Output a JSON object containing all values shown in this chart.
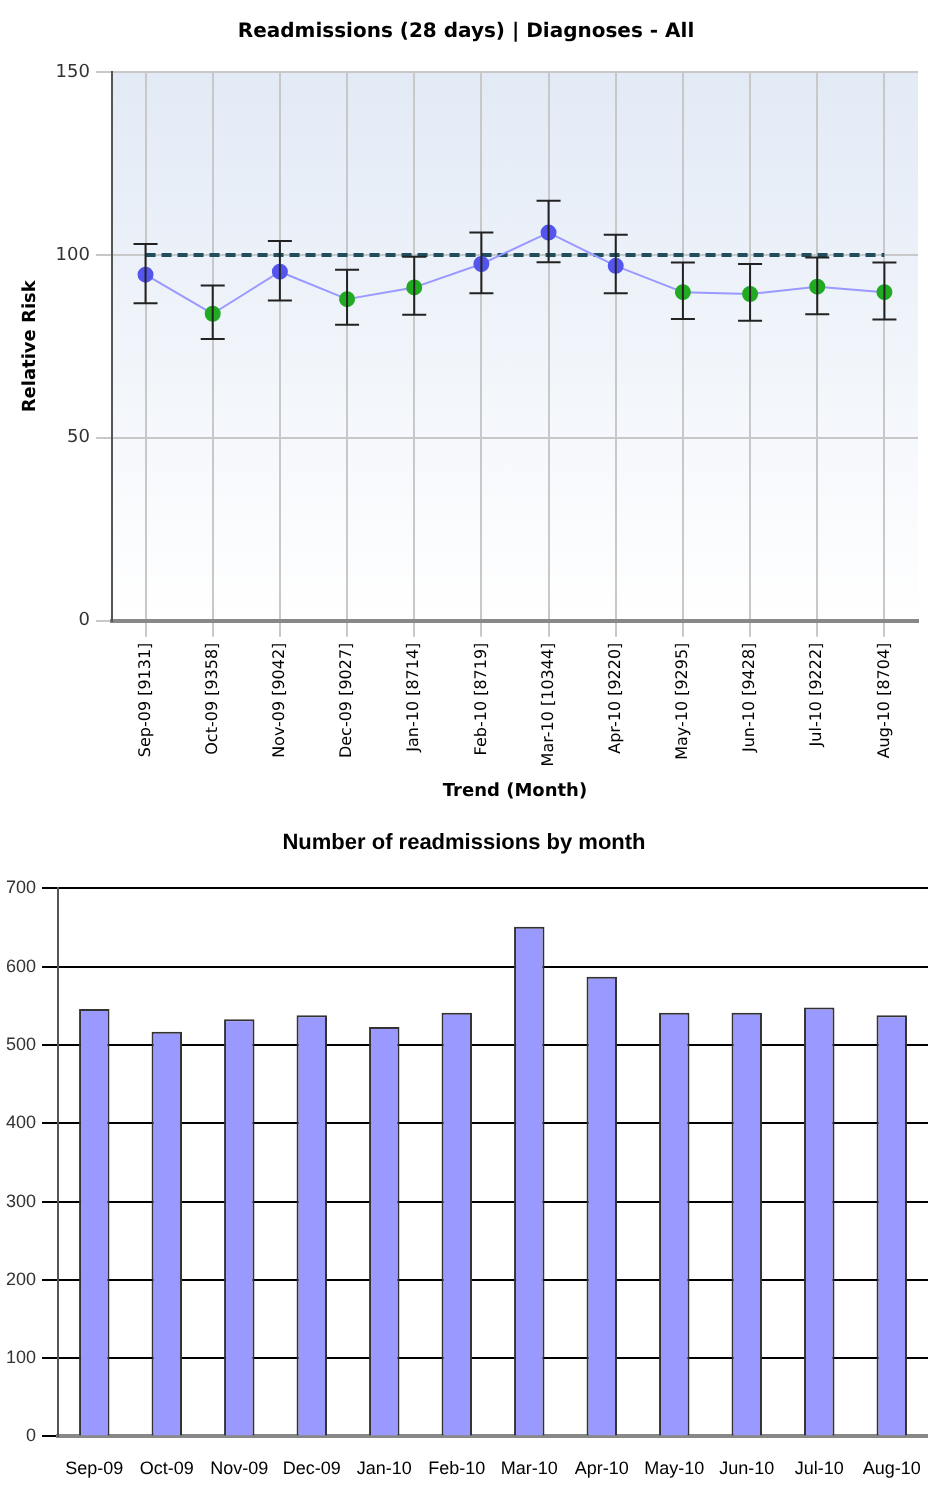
{
  "chart_data": [
    {
      "type": "line",
      "title": "Readmissions (28 days) | Diagnoses - All",
      "xlabel": "Trend (Month)",
      "ylabel": "Relative Risk",
      "categories": [
        "Sep-09 [9131]",
        "Oct-09 [9358]",
        "Nov-09 [9042]",
        "Dec-09 [9027]",
        "Jan-10 [8714]",
        "Feb-10 [8719]",
        "Mar-10 [10344]",
        "Apr-10 [9220]",
        "May-10 [9295]",
        "Jun-10 [9428]",
        "Jul-10 [9222]",
        "Aug-10 [8704]"
      ],
      "series": [
        {
          "color": "#9999ff",
          "colors": [
            "#5555ee",
            "#22aa22",
            "#5555ee",
            "#22aa22",
            "#22aa22",
            "#5555ee",
            "#5555ee",
            "#5555ee",
            "#22aa22",
            "#22aa22",
            "#22aa22",
            "#22aa22"
          ],
          "values": [
            94.6,
            83.9,
            95.4,
            87.9,
            91.1,
            97.5,
            106.1,
            97.0,
            89.8,
            89.3,
            91.3,
            89.8
          ],
          "errors": [
            [
              86.8,
              103.0
            ],
            [
              77.0,
              91.6
            ],
            [
              87.5,
              103.8
            ],
            [
              80.9,
              95.9
            ],
            [
              83.6,
              99.5
            ],
            [
              89.5,
              106.1
            ],
            [
              98.0,
              114.8
            ],
            [
              89.5,
              105.5
            ],
            [
              82.5,
              97.9
            ],
            [
              82.0,
              97.5
            ],
            [
              83.8,
              99.3
            ],
            [
              82.3,
              97.9
            ]
          ]
        }
      ],
      "ref_lines": [
        {
          "axis": "y",
          "value": 100,
          "color": "#1f4e5f",
          "line_style": "dashed"
        }
      ],
      "ylim": [
        0,
        150
      ],
      "yticks": [
        0,
        50,
        100,
        150
      ],
      "grid": true,
      "marker": "circle",
      "line_style": "solid"
    },
    {
      "type": "bar",
      "title": "Number of readmissions by month",
      "categories": [
        "Sep-09",
        "Oct-09",
        "Nov-09",
        "Dec-09",
        "Jan-10",
        "Feb-10",
        "Mar-10",
        "Apr-10",
        "May-10",
        "Jun-10",
        "Jul-10",
        "Aug-10"
      ],
      "series": [
        {
          "color": "#9999ff",
          "values": [
            546,
            517,
            533,
            538,
            523,
            541,
            651,
            587,
            541,
            541,
            548,
            538
          ]
        }
      ],
      "ylim": [
        0,
        700
      ],
      "yticks": [
        0,
        100,
        200,
        300,
        400,
        500,
        600,
        700
      ],
      "grid": "y"
    }
  ]
}
